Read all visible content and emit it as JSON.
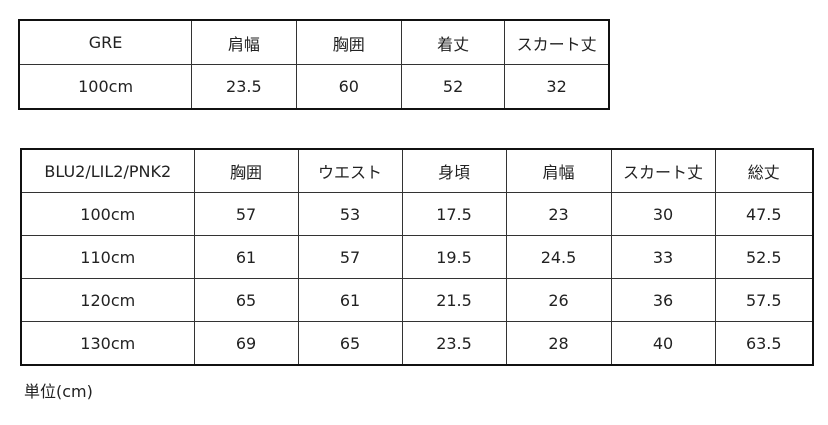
{
  "table1": {
    "headers": [
      "GRE",
      "肩幅",
      "胸囲",
      "着丈",
      "スカート丈"
    ],
    "rows": [
      [
        "100cm",
        "23.5",
        "60",
        "52",
        "32"
      ]
    ]
  },
  "table2": {
    "headers": [
      "BLU2/LIL2/PNK2",
      "胸囲",
      "ウエスト",
      "身頃",
      "肩幅",
      "スカート丈",
      "総丈"
    ],
    "rows": [
      [
        "100cm",
        "57",
        "53",
        "17.5",
        "23",
        "30",
        "47.5"
      ],
      [
        "110cm",
        "61",
        "57",
        "19.5",
        "24.5",
        "33",
        "52.5"
      ],
      [
        "120cm",
        "65",
        "61",
        "21.5",
        "26",
        "36",
        "57.5"
      ],
      [
        "130cm",
        "69",
        "65",
        "23.5",
        "28",
        "40",
        "63.5"
      ]
    ]
  },
  "unit_note": "単位(cm)"
}
